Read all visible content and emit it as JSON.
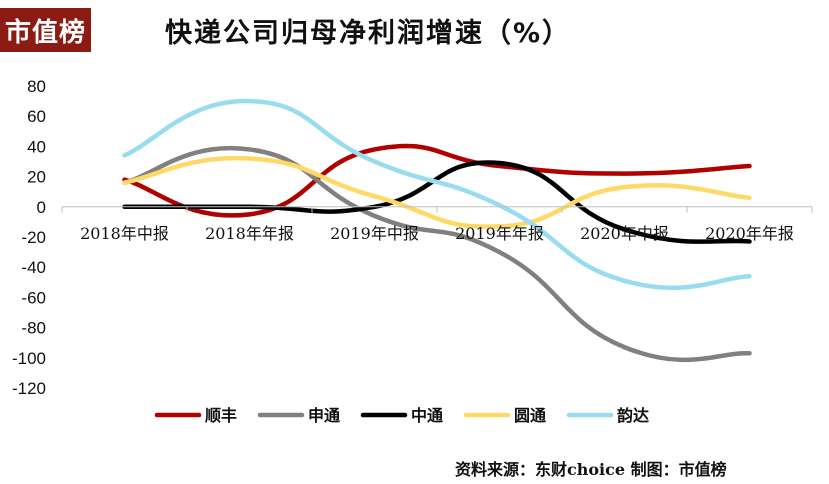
{
  "logo": {
    "text": "市值榜",
    "color": "#8c1c13"
  },
  "source_text": "资料来源：东财choice  制图：市值榜",
  "chart_data": {
    "type": "line",
    "title": "快递公司归母净利润增速（%）",
    "xlabel": "",
    "ylabel": "",
    "x": [
      "2018年中报",
      "2018年年报",
      "2019年中报",
      "2019年年报",
      "2020年中报",
      "2020年年报"
    ],
    "ylim": [
      -120,
      80
    ],
    "yticks": [
      80,
      60,
      40,
      20,
      0,
      -20,
      -40,
      -60,
      -80,
      -100,
      -120
    ],
    "grid": false,
    "legend_position": "bottom",
    "smooth": true,
    "series": [
      {
        "name": "顺丰",
        "color": "#b00000",
        "values": [
          18,
          -5,
          38,
          27,
          22,
          27
        ]
      },
      {
        "name": "申通",
        "color": "#808080",
        "values": [
          16,
          38,
          -6,
          -30,
          -93,
          -97
        ]
      },
      {
        "name": "中通",
        "color": "#000000",
        "values": [
          0,
          0,
          0,
          29,
          -15,
          -23
        ]
      },
      {
        "name": "圆通",
        "color": "#ffd966",
        "values": [
          16,
          32,
          7,
          -13,
          13,
          6
        ]
      },
      {
        "name": "韵达",
        "color": "#99dcf0",
        "values": [
          34,
          70,
          30,
          1,
          -49,
          -46
        ]
      }
    ]
  }
}
